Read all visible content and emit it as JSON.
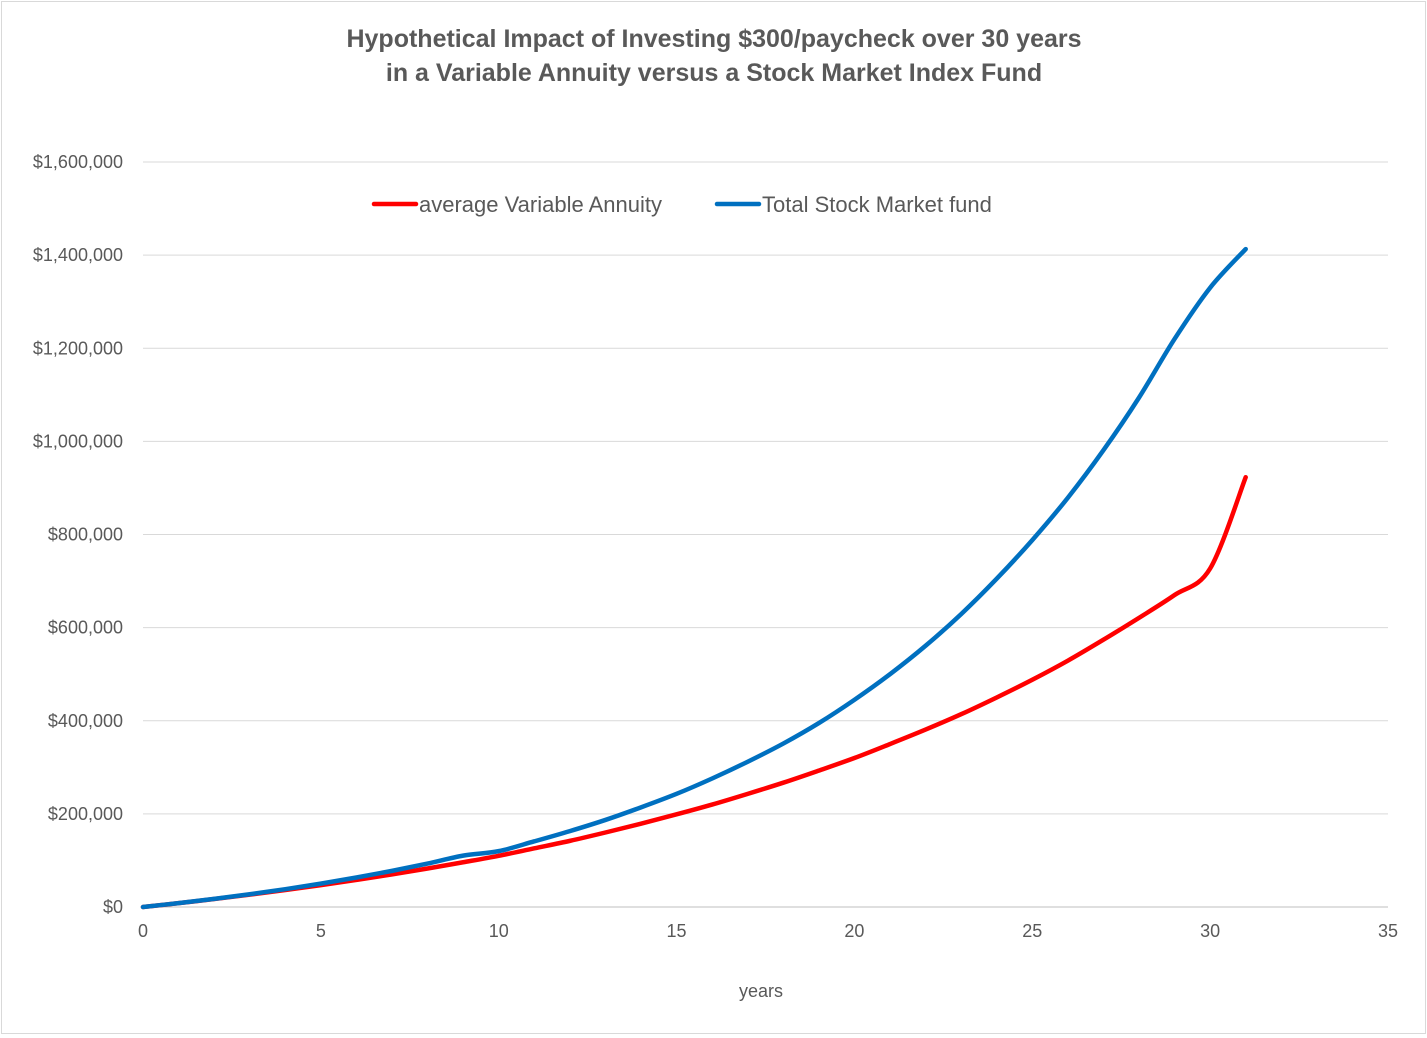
{
  "chart_data": {
    "type": "line",
    "title": [
      "Hypothetical Impact of Investing $300/paycheck over 30 years",
      "in a Variable Annuity versus a Stock Market Index Fund"
    ],
    "xlabel": "years",
    "ylabel": "",
    "xlim": [
      0,
      35
    ],
    "ylim": [
      0,
      1600000
    ],
    "x_ticks": [
      0,
      5,
      10,
      15,
      20,
      25,
      30,
      35
    ],
    "x_tick_labels": [
      "0",
      "5",
      "10",
      "15",
      "20",
      "25",
      "30",
      "35"
    ],
    "y_ticks": [
      0,
      200000,
      400000,
      600000,
      800000,
      1000000,
      1200000,
      1400000,
      1600000
    ],
    "y_tick_labels": [
      "$0",
      "$200,000",
      "$400,000",
      "$600,000",
      "$800,000",
      "$1,000,000",
      "$1,200,000",
      "$1,400,000",
      "$1,600,000"
    ],
    "grid": "horizontal",
    "legend_position": "top",
    "series": [
      {
        "name": "average Variable Annuity",
        "color": "#ff0000",
        "x": [
          0,
          1,
          2,
          3,
          4,
          5,
          6,
          7,
          8,
          9,
          10,
          11,
          12,
          13,
          14,
          15,
          16,
          17,
          18,
          19,
          20,
          21,
          22,
          23,
          24,
          25,
          26,
          27,
          28,
          29,
          30,
          31
        ],
        "y": [
          0,
          8300,
          17100,
          26500,
          36400,
          47000,
          58200,
          70100,
          82700,
          96100,
          110000,
          126000,
          142000,
          160000,
          179000,
          199000,
          220000,
          243000,
          267000,
          293000,
          320000,
          350000,
          381000,
          414000,
          450000,
          488000,
          529000,
          574000,
          621000,
          670000,
          727000,
          923000
        ]
      },
      {
        "name": "Total Stock Market fund",
        "color": "#0070c0",
        "x": [
          0,
          1,
          2,
          3,
          4,
          5,
          6,
          7,
          8,
          9,
          10,
          11,
          12,
          13,
          14,
          15,
          16,
          17,
          18,
          19,
          20,
          21,
          22,
          23,
          24,
          25,
          26,
          27,
          28,
          29,
          30,
          31
        ],
        "y": [
          0,
          8400,
          17500,
          27400,
          38300,
          50200,
          63300,
          77600,
          93300,
          110400,
          120000,
          141000,
          163000,
          187000,
          214000,
          243000,
          276000,
          312000,
          351000,
          395000,
          445000,
          500000,
          561000,
          629000,
          705000,
          788000,
          879000,
          981000,
          1094000,
          1220000,
          1330000,
          1413000
        ]
      }
    ]
  }
}
